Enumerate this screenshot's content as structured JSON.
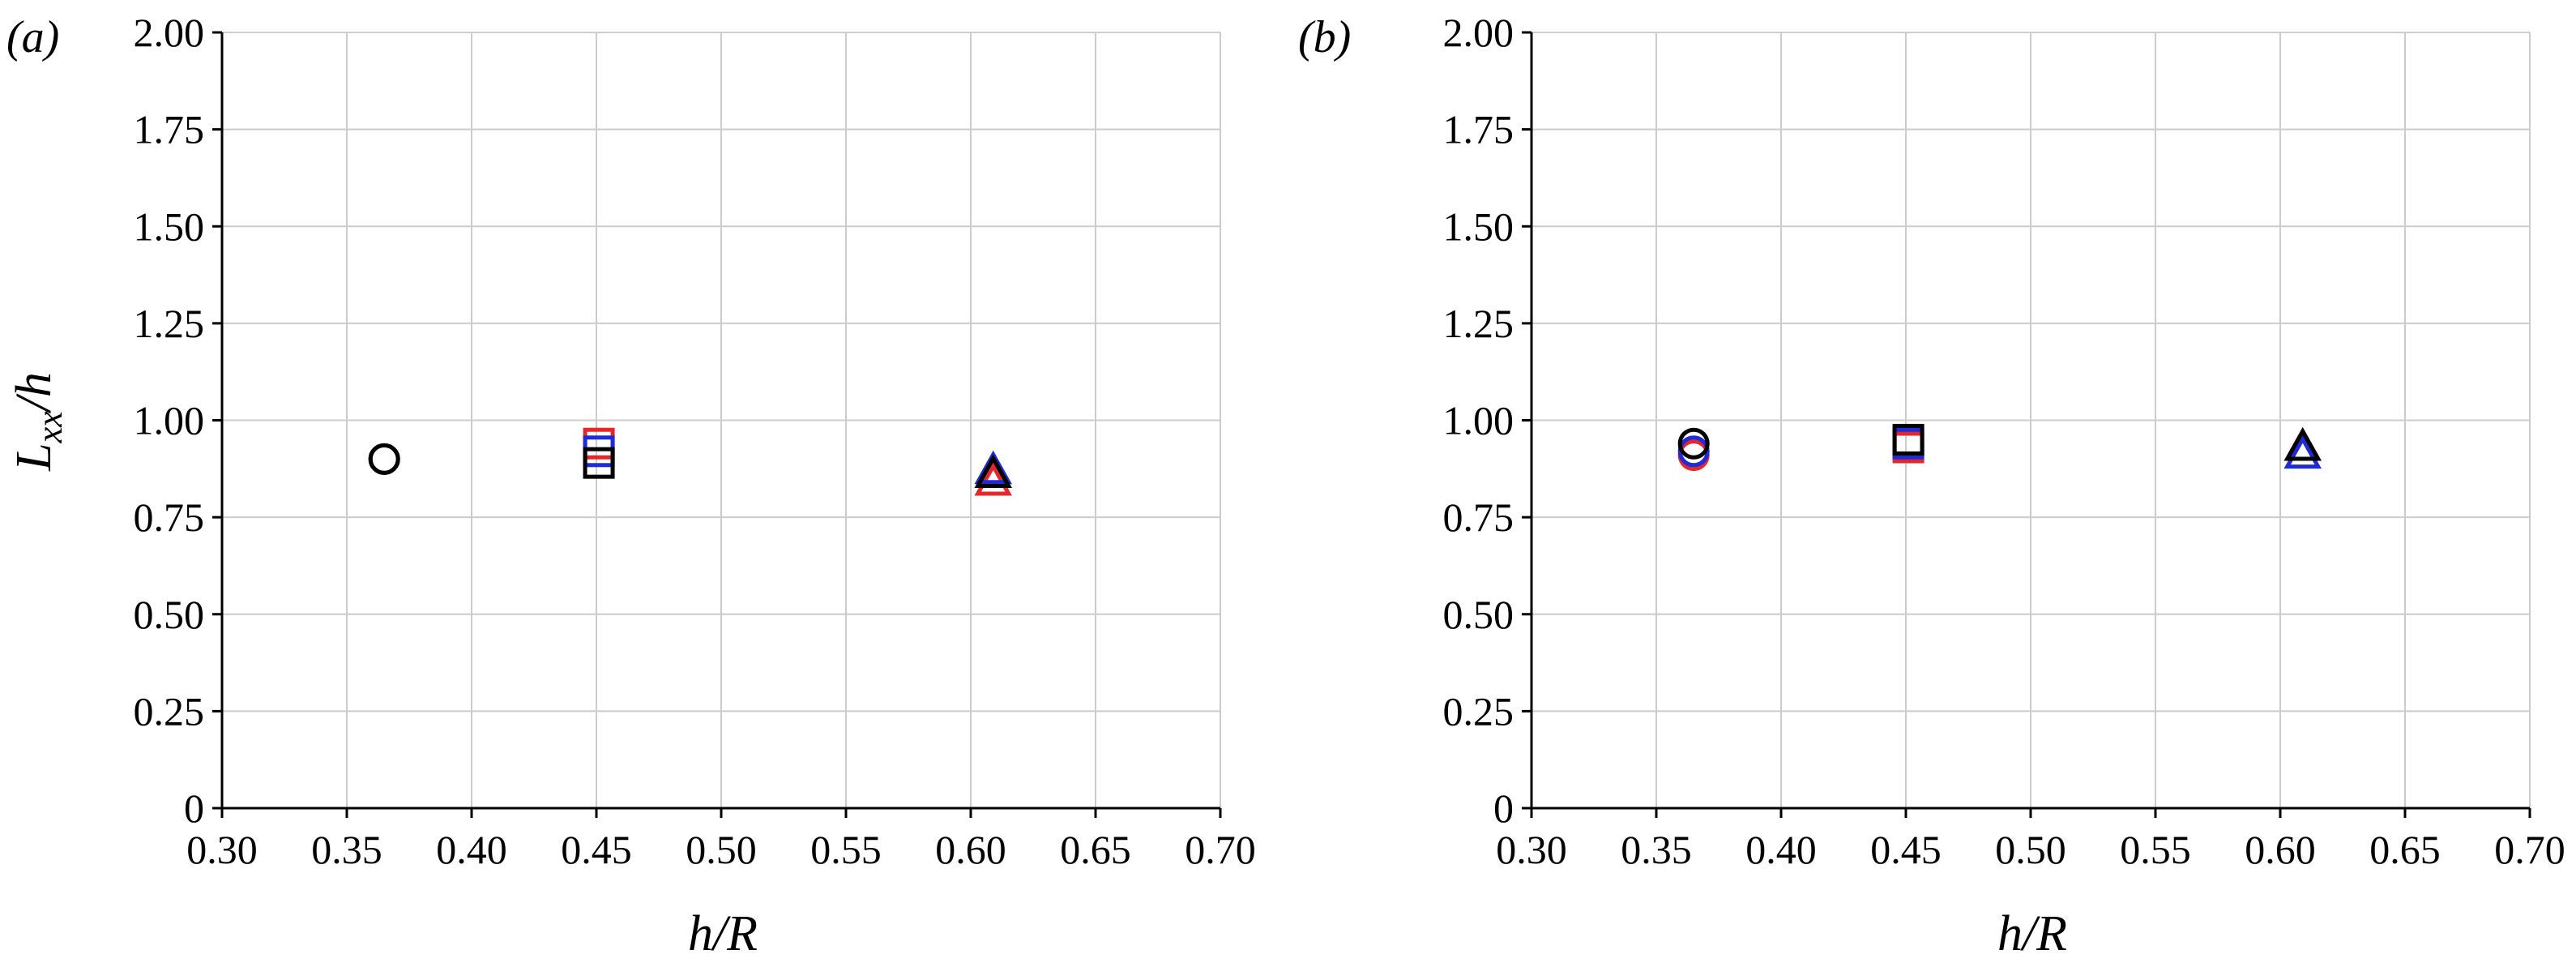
{
  "chart_data": [
    {
      "type": "scatter",
      "panel_label": "(a)",
      "xlabel": "h/R",
      "ylabel": "Lxx/h",
      "ylabel_main": "L",
      "ylabel_sub": "xx",
      "ylabel_tail": "/h",
      "xlim": [
        0.3,
        0.7
      ],
      "ylim": [
        0,
        2.0
      ],
      "xticks": [
        "0.30",
        "0.35",
        "0.40",
        "0.45",
        "0.50",
        "0.55",
        "0.60",
        "0.65",
        "0.70"
      ],
      "yticks": [
        "0",
        "0.25",
        "0.50",
        "0.75",
        "1.00",
        "1.25",
        "1.50",
        "1.75",
        "2.00"
      ],
      "grid": true,
      "series": [
        {
          "color": "#e8252a",
          "points": [
            {
              "x": 0.365,
              "y": 0.9,
              "marker": "circle"
            },
            {
              "x": 0.451,
              "y": 0.94,
              "marker": "square"
            },
            {
              "x": 0.609,
              "y": 0.84,
              "marker": "triangle"
            }
          ]
        },
        {
          "color": "#1f2bd6",
          "points": [
            {
              "x": 0.365,
              "y": 0.9,
              "marker": "circle"
            },
            {
              "x": 0.451,
              "y": 0.92,
              "marker": "square"
            },
            {
              "x": 0.609,
              "y": 0.87,
              "marker": "triangle"
            }
          ]
        },
        {
          "color": "#000000",
          "points": [
            {
              "x": 0.365,
              "y": 0.9,
              "marker": "circle"
            },
            {
              "x": 0.451,
              "y": 0.89,
              "marker": "square"
            },
            {
              "x": 0.609,
              "y": 0.86,
              "marker": "triangle"
            }
          ]
        }
      ]
    },
    {
      "type": "scatter",
      "panel_label": "(b)",
      "xlabel": "h/R",
      "ylabel": "",
      "xlim": [
        0.3,
        0.7
      ],
      "ylim": [
        0,
        2.0
      ],
      "xticks": [
        "0.30",
        "0.35",
        "0.40",
        "0.45",
        "0.50",
        "0.55",
        "0.60",
        "0.65",
        "0.70"
      ],
      "yticks": [
        "0",
        "0.25",
        "0.50",
        "0.75",
        "1.00",
        "1.25",
        "1.50",
        "1.75",
        "2.00"
      ],
      "grid": true,
      "series": [
        {
          "color": "#e8252a",
          "points": [
            {
              "x": 0.365,
              "y": 0.91,
              "marker": "circle"
            },
            {
              "x": 0.451,
              "y": 0.93,
              "marker": "square"
            },
            {
              "x": 0.609,
              "y": 0.93,
              "marker": "triangle"
            }
          ]
        },
        {
          "color": "#1f2bd6",
          "points": [
            {
              "x": 0.365,
              "y": 0.92,
              "marker": "circle"
            },
            {
              "x": 0.451,
              "y": 0.94,
              "marker": "square"
            },
            {
              "x": 0.609,
              "y": 0.91,
              "marker": "triangle"
            }
          ]
        },
        {
          "color": "#000000",
          "points": [
            {
              "x": 0.365,
              "y": 0.94,
              "marker": "circle"
            },
            {
              "x": 0.451,
              "y": 0.95,
              "marker": "square"
            },
            {
              "x": 0.609,
              "y": 0.93,
              "marker": "triangle"
            }
          ]
        }
      ]
    }
  ]
}
